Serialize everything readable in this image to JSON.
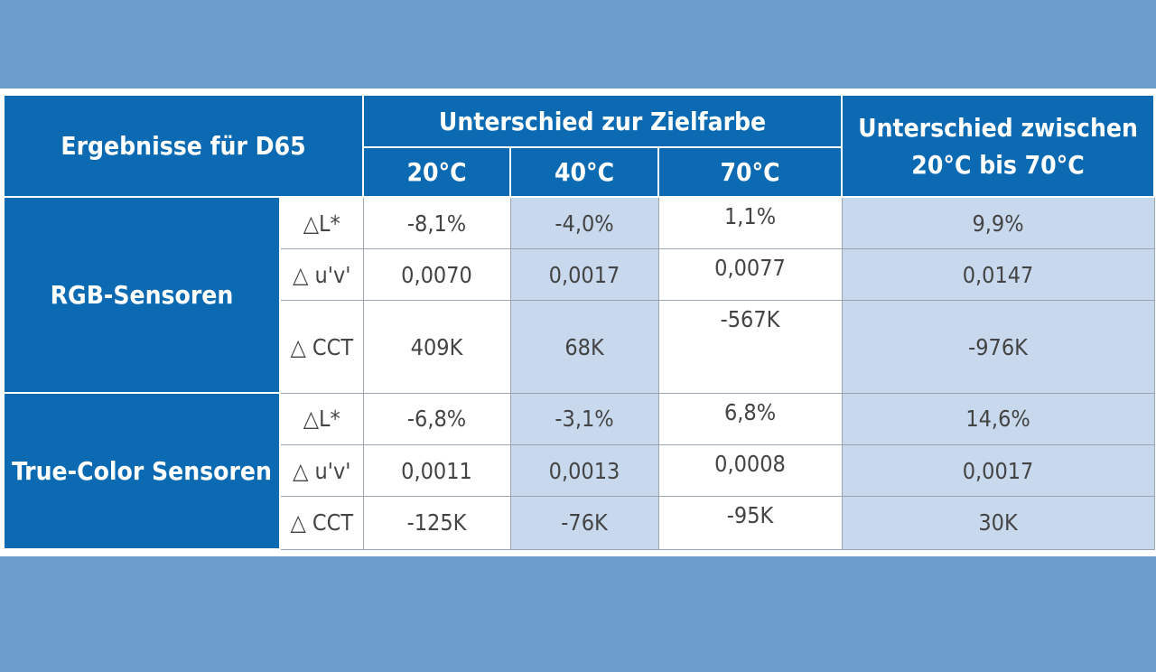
{
  "header": {
    "results_label": "Ergebnisse  für D65",
    "diff_target_label": "Unterschied zur Zielfarbe",
    "diff_between_line1": "Unterschied zwischen",
    "diff_between_line2": "20°C bis 70°C",
    "temps": [
      "20°C",
      "40°C",
      "70°C"
    ]
  },
  "groups": [
    {
      "name": "RGB-Sensoren",
      "rows": [
        {
          "metric": "△L*",
          "v20": "-8,1%",
          "v40": "-4,0%",
          "v70": "1,1%",
          "diff": "9,9%"
        },
        {
          "metric": "△ u'v'",
          "v20": "0,0070",
          "v40": "0,0017",
          "v70": "0,0077",
          "diff": "0,0147"
        },
        {
          "metric": "△ CCT",
          "v20": "409K",
          "v40": "68K",
          "v70": "-567K",
          "diff": "-976K"
        }
      ]
    },
    {
      "name": "True-Color Sensoren",
      "rows": [
        {
          "metric": "△L*",
          "v20": "-6,8%",
          "v40": "-3,1%",
          "v70": "6,8%",
          "diff": "14,6%"
        },
        {
          "metric": "△ u'v'",
          "v20": "0,0011",
          "v40": "0,0013",
          "v70": "0,0008",
          "diff": "0,0017"
        },
        {
          "metric": "△ CCT",
          "v20": "-125K",
          "v40": "-76K",
          "v70": "-95K",
          "diff": "30K"
        }
      ]
    }
  ],
  "colors": {
    "background": "#6b9ccc",
    "header_blue": "#0c6ab3",
    "cell_light_blue": "#c8d9ee",
    "cell_white": "#ffffff",
    "text_gray": "#444444"
  }
}
